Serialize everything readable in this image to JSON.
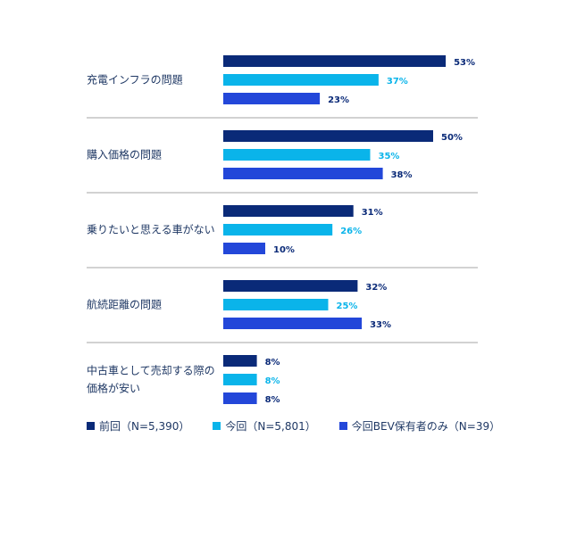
{
  "chart_data": {
    "type": "bar",
    "orientation": "horizontal",
    "categories": [
      [
        "充電インフラの問題"
      ],
      [
        "購入価格の問題"
      ],
      [
        "乗りたいと思える車がない"
      ],
      [
        "航続距離の問題"
      ],
      [
        "中古車として売却する際の",
        "価格が安い"
      ]
    ],
    "series": [
      {
        "name": "前回（N=5,390）",
        "color": "#0a2a78",
        "label_color": "#0a2a78",
        "values": [
          53,
          50,
          31,
          32,
          8
        ]
      },
      {
        "name": "今回（N=5,801）",
        "color": "#0ab4ea",
        "label_color": "#0ab4ea",
        "values": [
          37,
          35,
          26,
          25,
          8
        ]
      },
      {
        "name": "今回BEV保有者のみ（N=39）",
        "color": "#2347d9",
        "label_color": "#0a2a78",
        "values": [
          23,
          38,
          10,
          33,
          8
        ]
      }
    ],
    "value_suffix": "%",
    "xlim": [
      0,
      100
    ],
    "grid": false,
    "separators": true,
    "legend_position": "bottom-left"
  }
}
